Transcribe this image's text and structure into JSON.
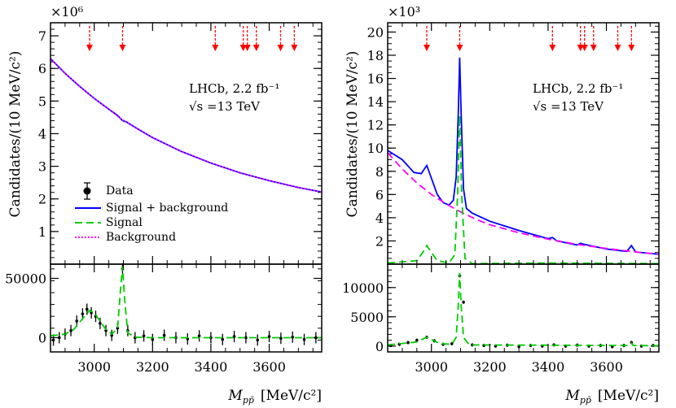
{
  "chart_data": [
    {
      "type": "line",
      "panel": "left-top",
      "ylabel": "Candidates/(10 MeV/c²)",
      "y_multiplier": "×10⁶",
      "xlim": [
        2850,
        3780
      ],
      "ylim": [
        0,
        7.4
      ],
      "yticks": [
        1,
        2,
        3,
        4,
        5,
        6,
        7
      ],
      "annotation": [
        "LHCb, 2.2 fb⁻¹",
        "√s =13 TeV"
      ],
      "arrows_x": [
        2984,
        3097,
        3415,
        3511,
        3525,
        3556,
        3639,
        3686
      ],
      "legend": {
        "placement": "center-left",
        "entries": [
          "Data",
          "Signal + background",
          "Signal",
          "Background"
        ]
      },
      "series": [
        {
          "name": "Signal + background",
          "color": "#0000ff",
          "style": "solid",
          "x": [
            2850,
            2900,
            2950,
            3000,
            3050,
            3080,
            3097,
            3110,
            3150,
            3200,
            3300,
            3400,
            3500,
            3600,
            3700,
            3780
          ],
          "y": [
            6.3,
            5.85,
            5.45,
            5.08,
            4.75,
            4.56,
            4.4,
            4.36,
            4.14,
            3.88,
            3.45,
            3.1,
            2.8,
            2.56,
            2.35,
            2.21
          ]
        },
        {
          "name": "Background",
          "color": "#ff00ff",
          "style": "dotted",
          "x": [
            2850,
            2900,
            2950,
            3000,
            3050,
            3097,
            3150,
            3200,
            3300,
            3400,
            3500,
            3600,
            3700,
            3780
          ],
          "y": [
            6.3,
            5.85,
            5.45,
            5.08,
            4.75,
            4.42,
            4.14,
            3.88,
            3.45,
            3.1,
            2.8,
            2.56,
            2.35,
            2.21
          ]
        }
      ]
    },
    {
      "type": "line",
      "panel": "left-bottom",
      "xlim": [
        2850,
        3780
      ],
      "ylim": [
        -12000,
        62000
      ],
      "yticks": [
        0,
        50000
      ],
      "series": [
        {
          "name": "Signal",
          "color": "#00cc00",
          "style": "dashed",
          "x": [
            2850,
            2900,
            2930,
            2960,
            2984,
            3000,
            3020,
            3040,
            3060,
            3080,
            3090,
            3097,
            3105,
            3115,
            3140,
            3200,
            3400,
            3780
          ],
          "y": [
            1500,
            3000,
            7000,
            16000,
            23000,
            21000,
            14000,
            7000,
            3000,
            8000,
            40000,
            60000,
            30000,
            4000,
            500,
            0,
            0,
            0
          ]
        }
      ],
      "data_points": {
        "x": [
          2860,
          2880,
          2900,
          2920,
          2940,
          2960,
          2975,
          2990,
          3005,
          3020,
          3040,
          3060,
          3080,
          3097,
          3115,
          3140,
          3170,
          3200,
          3240,
          3280,
          3320,
          3360,
          3400,
          3440,
          3480,
          3520,
          3560,
          3600,
          3640,
          3680,
          3720,
          3760
        ],
        "y": [
          -2000,
          0,
          3000,
          6000,
          14000,
          20000,
          24000,
          21000,
          18000,
          12000,
          6000,
          2000,
          8000,
          58000,
          6000,
          0,
          1500,
          -1500,
          2000,
          0,
          -1000,
          1500,
          0,
          -1500,
          1000,
          0,
          -2000,
          1000,
          -500,
          500,
          -1500,
          0
        ]
      }
    },
    {
      "type": "line",
      "panel": "right-top",
      "ylabel": "Candidates/(10 MeV/c²)",
      "y_multiplier": "×10³",
      "xlim": [
        2850,
        3780
      ],
      "ylim": [
        0,
        20.8
      ],
      "yticks": [
        2,
        4,
        6,
        8,
        10,
        12,
        14,
        16,
        18,
        20
      ],
      "annotation": [
        "LHCb, 2.2 fb⁻¹",
        "√s =13 TeV"
      ],
      "arrows_x": [
        2984,
        3097,
        3415,
        3511,
        3525,
        3556,
        3639,
        3686
      ],
      "series": [
        {
          "name": "Signal + background",
          "color": "#0000ff",
          "style": "solid",
          "x": [
            2850,
            2900,
            2940,
            2965,
            2984,
            3000,
            3020,
            3040,
            3060,
            3075,
            3085,
            3092,
            3097,
            3102,
            3110,
            3120,
            3140,
            3200,
            3300,
            3400,
            3415,
            3430,
            3500,
            3511,
            3525,
            3600,
            3670,
            3686,
            3700,
            3780
          ],
          "y": [
            9.8,
            9.0,
            7.9,
            7.8,
            8.5,
            7.4,
            6.0,
            5.3,
            5.1,
            5.5,
            7.5,
            13.0,
            17.8,
            13.0,
            6.5,
            4.8,
            4.4,
            3.7,
            2.9,
            2.2,
            2.3,
            2.0,
            1.65,
            1.8,
            1.7,
            1.3,
            1.1,
            1.6,
            1.05,
            0.85
          ]
        },
        {
          "name": "Background",
          "color": "#ff00ff",
          "style": "dashed",
          "x": [
            2850,
            2900,
            2950,
            3000,
            3050,
            3100,
            3150,
            3200,
            3300,
            3400,
            3500,
            3600,
            3700,
            3780
          ],
          "y": [
            9.6,
            8.2,
            7.0,
            6.0,
            5.2,
            4.5,
            3.9,
            3.4,
            2.7,
            2.15,
            1.7,
            1.35,
            1.05,
            0.85
          ]
        },
        {
          "name": "Signal",
          "color": "#00cc00",
          "style": "dashed",
          "x": [
            2850,
            2950,
            2970,
            2984,
            3000,
            3020,
            3060,
            3080,
            3090,
            3097,
            3104,
            3115,
            3140,
            3400,
            3780
          ],
          "y": [
            0.1,
            0.3,
            1.0,
            1.6,
            1.0,
            0.3,
            0.1,
            0.8,
            6.0,
            12.8,
            6.0,
            0.5,
            0.05,
            0.1,
            0.05
          ]
        }
      ]
    },
    {
      "type": "line",
      "panel": "right-bottom",
      "xlim": [
        2850,
        3780
      ],
      "xlabel": "M_pp̄ [MeV/c²]",
      "xticks": [
        3000,
        3200,
        3400,
        3600
      ],
      "ylim": [
        -1000,
        14000
      ],
      "yticks": [
        0,
        5000,
        10000
      ],
      "series": [
        {
          "name": "Signal",
          "color": "#00cc00",
          "style": "dashed",
          "x": [
            2850,
            2950,
            2970,
            2984,
            3000,
            3030,
            3070,
            3085,
            3092,
            3097,
            3102,
            3110,
            3130,
            3400,
            3680,
            3686,
            3692,
            3780
          ],
          "y": [
            200,
            700,
            1200,
            1500,
            1100,
            400,
            300,
            1500,
            7000,
            12500,
            7000,
            1500,
            200,
            150,
            100,
            500,
            100,
            50
          ]
        }
      ],
      "data_points": {
        "x": [
          2860,
          2890,
          2920,
          2950,
          2984,
          3010,
          3040,
          3070,
          3097,
          3110,
          3140,
          3180,
          3220,
          3260,
          3300,
          3340,
          3380,
          3420,
          3460,
          3500,
          3540,
          3580,
          3620,
          3660,
          3686,
          3720,
          3760
        ],
        "y": [
          100,
          300,
          600,
          1000,
          1500,
          900,
          300,
          400,
          12000,
          7500,
          200,
          100,
          0,
          150,
          -100,
          100,
          0,
          200,
          0,
          150,
          0,
          100,
          -100,
          100,
          600,
          0,
          100
        ]
      }
    }
  ],
  "x_axis": {
    "label_main": "M",
    "label_sub": "pp̄",
    "label_units": "[MeV/c²]",
    "ticks": [
      "3000",
      "3200",
      "3400",
      "3600"
    ]
  },
  "left": {
    "ylabel": "Candidates/(10 MeV/c²)",
    "multiplier": "×10⁶",
    "ticks": [
      "1",
      "2",
      "3",
      "4",
      "5",
      "6",
      "7"
    ],
    "resid_ticks": [
      "0",
      "50000"
    ],
    "annot_line1": "LHCb, 2.2 fb⁻¹",
    "annot_line2": "√s =13 TeV"
  },
  "right": {
    "ylabel": "Candidates/(10 MeV/c²)",
    "multiplier": "×10³",
    "ticks": [
      "2",
      "4",
      "6",
      "8",
      "10",
      "12",
      "14",
      "16",
      "18",
      "20"
    ],
    "resid_ticks": [
      "0",
      "5000",
      "10000"
    ],
    "annot_line1": "LHCb, 2.2 fb⁻¹",
    "annot_line2": "√s =13 TeV"
  },
  "legend": {
    "data": "Data",
    "sigbkg": "Signal + background",
    "signal": "Signal",
    "background": "Background"
  },
  "colors": {
    "total": "#0000ff",
    "signal": "#00cc00",
    "background": "#ff00ff",
    "arrow": "#ff0000",
    "data": "#000000"
  }
}
